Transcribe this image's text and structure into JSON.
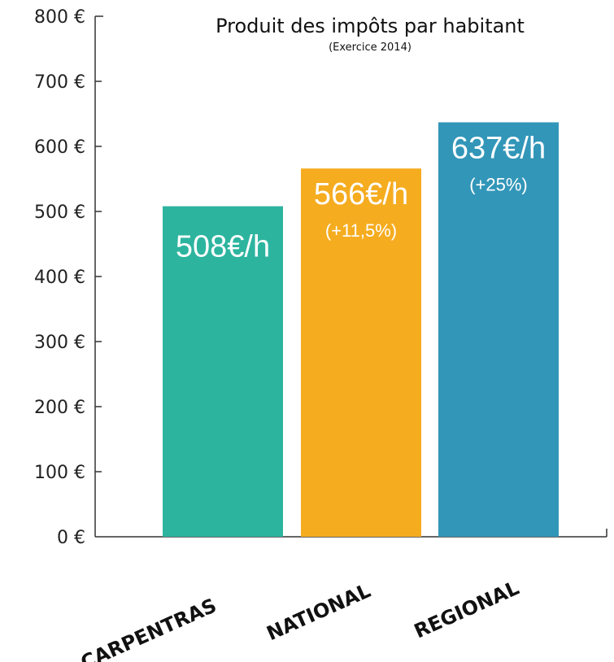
{
  "chart_data": {
    "type": "bar",
    "title": "Produit des impôts par habitant",
    "subtitle": "(Exercice 2014)",
    "categories": [
      "CARPENTRAS",
      "NATIONAL",
      "REGIONAL"
    ],
    "values": [
      508,
      566,
      637
    ],
    "value_labels": [
      "508€/h",
      "566€/h",
      "637€/h"
    ],
    "delta_labels": [
      "",
      "(+11,5%)",
      "(+25%)"
    ],
    "colors": [
      "#2db49f",
      "#f5ac1f",
      "#3296b8"
    ],
    "ylim": [
      0,
      800
    ],
    "yticks": [
      0,
      100,
      200,
      300,
      400,
      500,
      600,
      700,
      800
    ],
    "ytick_labels": [
      "0 €",
      "100 €",
      "200 €",
      "300 €",
      "400 €",
      "500 €",
      "600 €",
      "700 €",
      "800 €"
    ],
    "xlabel": "",
    "ylabel": "",
    "grid": false,
    "legend": "none"
  }
}
